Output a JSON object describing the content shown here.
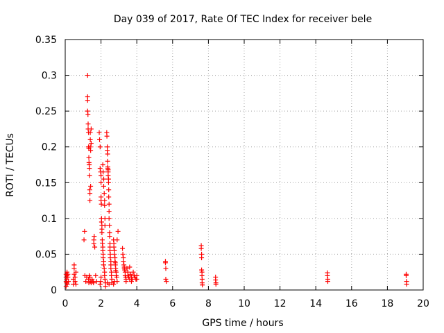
{
  "chart_data": {
    "type": "scatter",
    "title": "Day 039 of 2017, Rate Of TEC Index for receiver bele",
    "xlabel": "GPS time / hours",
    "ylabel": "ROTI / TECUs",
    "xlim": [
      0,
      20
    ],
    "ylim": [
      0,
      0.35
    ],
    "xticks": [
      0,
      2,
      4,
      6,
      8,
      10,
      12,
      14,
      16,
      18,
      20
    ],
    "yticks": [
      0,
      0.05,
      0.1,
      0.15,
      0.2,
      0.25,
      0.3,
      0.35
    ],
    "xtick_labels": [
      "0",
      "2",
      "4",
      "6",
      "8",
      "10",
      "12",
      "14",
      "16",
      "18",
      "20"
    ],
    "ytick_labels": [
      "0",
      "0.05",
      "0.1",
      "0.15",
      "0.2",
      "0.25",
      "0.3",
      "0.35"
    ],
    "grid": true,
    "marker": "+",
    "marker_color": "#ff0000",
    "series": [
      {
        "name": "ROTI",
        "points": [
          [
            0.05,
            0.005
          ],
          [
            0.05,
            0.012
          ],
          [
            0.05,
            0.018
          ],
          [
            0.05,
            0.022
          ],
          [
            0.08,
            0.01
          ],
          [
            0.08,
            0.015
          ],
          [
            0.1,
            0.02
          ],
          [
            0.1,
            0.025
          ],
          [
            0.12,
            0.008
          ],
          [
            0.15,
            0.018
          ],
          [
            0.15,
            0.022
          ],
          [
            0.18,
            0.012
          ],
          [
            0.45,
            0.008
          ],
          [
            0.45,
            0.015
          ],
          [
            0.5,
            0.022
          ],
          [
            0.5,
            0.035
          ],
          [
            0.5,
            0.03
          ],
          [
            0.55,
            0.018
          ],
          [
            0.55,
            0.012
          ],
          [
            0.6,
            0.008
          ],
          [
            0.6,
            0.025
          ],
          [
            1.05,
            0.07
          ],
          [
            1.08,
            0.082
          ],
          [
            1.1,
            0.02
          ],
          [
            1.15,
            0.012
          ],
          [
            1.2,
            0.018
          ],
          [
            1.25,
            0.3
          ],
          [
            1.25,
            0.27
          ],
          [
            1.25,
            0.265
          ],
          [
            1.25,
            0.25
          ],
          [
            1.27,
            0.245
          ],
          [
            1.28,
            0.232
          ],
          [
            1.28,
            0.225
          ],
          [
            1.3,
            0.22
          ],
          [
            1.3,
            0.2
          ],
          [
            1.32,
            0.198
          ],
          [
            1.32,
            0.185
          ],
          [
            1.33,
            0.178
          ],
          [
            1.34,
            0.175
          ],
          [
            1.35,
            0.17
          ],
          [
            1.36,
            0.16
          ],
          [
            1.37,
            0.14
          ],
          [
            1.38,
            0.135
          ],
          [
            1.38,
            0.125
          ],
          [
            1.4,
            0.22
          ],
          [
            1.4,
            0.21
          ],
          [
            1.4,
            0.2
          ],
          [
            1.42,
            0.195
          ],
          [
            1.42,
            0.145
          ],
          [
            1.45,
            0.225
          ],
          [
            1.45,
            0.205
          ],
          [
            1.3,
            0.015
          ],
          [
            1.32,
            0.01
          ],
          [
            1.35,
            0.02
          ],
          [
            1.38,
            0.018
          ],
          [
            1.4,
            0.012
          ],
          [
            1.45,
            0.01
          ],
          [
            1.5,
            0.015
          ],
          [
            1.55,
            0.012
          ],
          [
            1.58,
            0.01
          ],
          [
            1.6,
            0.07
          ],
          [
            1.6,
            0.065
          ],
          [
            1.62,
            0.075
          ],
          [
            1.65,
            0.06
          ],
          [
            1.7,
            0.02
          ],
          [
            1.75,
            0.012
          ],
          [
            1.9,
            0.22
          ],
          [
            1.92,
            0.21
          ],
          [
            1.95,
            0.2
          ],
          [
            1.95,
            0.17
          ],
          [
            1.98,
            0.165
          ],
          [
            2.0,
            0.16
          ],
          [
            2.0,
            0.15
          ],
          [
            2.0,
            0.13
          ],
          [
            2.0,
            0.125
          ],
          [
            2.02,
            0.12
          ],
          [
            2.03,
            0.1
          ],
          [
            2.03,
            0.095
          ],
          [
            2.05,
            0.09
          ],
          [
            2.05,
            0.085
          ],
          [
            2.05,
            0.08
          ],
          [
            2.07,
            0.07
          ],
          [
            2.08,
            0.065
          ],
          [
            2.1,
            0.06
          ],
          [
            2.1,
            0.055
          ],
          [
            2.12,
            0.05
          ],
          [
            2.12,
            0.045
          ],
          [
            2.15,
            0.04
          ],
          [
            2.15,
            0.035
          ],
          [
            2.18,
            0.03
          ],
          [
            2.2,
            0.025
          ],
          [
            2.2,
            0.02
          ],
          [
            2.22,
            0.015
          ],
          [
            2.25,
            0.01
          ],
          [
            2.25,
            0.005
          ],
          [
            1.95,
            0.008
          ],
          [
            1.98,
            0.012
          ],
          [
            2.0,
            0.018
          ],
          [
            2.1,
            0.175
          ],
          [
            2.12,
            0.165
          ],
          [
            2.15,
            0.155
          ],
          [
            2.15,
            0.145
          ],
          [
            2.18,
            0.135
          ],
          [
            2.2,
            0.125
          ],
          [
            2.2,
            0.118
          ],
          [
            2.22,
            0.1
          ],
          [
            2.22,
            0.09
          ],
          [
            2.32,
            0.22
          ],
          [
            2.33,
            0.215
          ],
          [
            2.35,
            0.2
          ],
          [
            2.35,
            0.195
          ],
          [
            2.37,
            0.19
          ],
          [
            2.37,
            0.18
          ],
          [
            2.38,
            0.172
          ],
          [
            2.38,
            0.17
          ],
          [
            2.4,
            0.168
          ],
          [
            2.4,
            0.165
          ],
          [
            2.4,
            0.16
          ],
          [
            2.42,
            0.155
          ],
          [
            2.42,
            0.15
          ],
          [
            2.43,
            0.14
          ],
          [
            2.43,
            0.13
          ],
          [
            2.45,
            0.12
          ],
          [
            2.45,
            0.11
          ],
          [
            2.45,
            0.1
          ],
          [
            2.47,
            0.09
          ],
          [
            2.48,
            0.08
          ],
          [
            2.48,
            0.075
          ],
          [
            2.5,
            0.065
          ],
          [
            2.5,
            0.06
          ],
          [
            2.5,
            0.055
          ],
          [
            2.52,
            0.05
          ],
          [
            2.52,
            0.045
          ],
          [
            2.55,
            0.04
          ],
          [
            2.55,
            0.035
          ],
          [
            2.55,
            0.03
          ],
          [
            2.58,
            0.025
          ],
          [
            2.58,
            0.02
          ],
          [
            2.6,
            0.015
          ],
          [
            2.6,
            0.01
          ],
          [
            2.35,
            0.01
          ],
          [
            2.45,
            0.008
          ],
          [
            2.7,
            0.07
          ],
          [
            2.72,
            0.065
          ],
          [
            2.72,
            0.06
          ],
          [
            2.75,
            0.055
          ],
          [
            2.75,
            0.05
          ],
          [
            2.78,
            0.045
          ],
          [
            2.78,
            0.04
          ],
          [
            2.8,
            0.038
          ],
          [
            2.8,
            0.035
          ],
          [
            2.82,
            0.03
          ],
          [
            2.82,
            0.027
          ],
          [
            2.85,
            0.025
          ],
          [
            2.85,
            0.02
          ],
          [
            2.88,
            0.018
          ],
          [
            2.9,
            0.012
          ],
          [
            2.9,
            0.07
          ],
          [
            2.95,
            0.082
          ],
          [
            2.7,
            0.008
          ],
          [
            2.75,
            0.012
          ],
          [
            3.2,
            0.058
          ],
          [
            3.22,
            0.05
          ],
          [
            3.25,
            0.045
          ],
          [
            3.25,
            0.04
          ],
          [
            3.28,
            0.035
          ],
          [
            3.3,
            0.032
          ],
          [
            3.3,
            0.03
          ],
          [
            3.32,
            0.028
          ],
          [
            3.35,
            0.025
          ],
          [
            3.35,
            0.02
          ],
          [
            3.38,
            0.018
          ],
          [
            3.4,
            0.015
          ],
          [
            3.4,
            0.012
          ],
          [
            3.45,
            0.03
          ],
          [
            3.5,
            0.025
          ],
          [
            3.5,
            0.02
          ],
          [
            3.55,
            0.018
          ],
          [
            3.6,
            0.015
          ],
          [
            3.65,
            0.022
          ],
          [
            3.7,
            0.018
          ],
          [
            3.75,
            0.015
          ],
          [
            3.8,
            0.025
          ],
          [
            3.85,
            0.02
          ],
          [
            3.9,
            0.018
          ],
          [
            3.95,
            0.015
          ],
          [
            4.0,
            0.02
          ],
          [
            4.0,
            0.015
          ],
          [
            3.6,
            0.032
          ],
          [
            3.7,
            0.012
          ],
          [
            5.6,
            0.04
          ],
          [
            5.6,
            0.038
          ],
          [
            5.62,
            0.03
          ],
          [
            5.62,
            0.015
          ],
          [
            5.65,
            0.012
          ],
          [
            7.6,
            0.062
          ],
          [
            7.6,
            0.058
          ],
          [
            7.62,
            0.05
          ],
          [
            7.62,
            0.045
          ],
          [
            7.62,
            0.028
          ],
          [
            7.64,
            0.025
          ],
          [
            7.64,
            0.02
          ],
          [
            7.65,
            0.015
          ],
          [
            7.65,
            0.01
          ],
          [
            7.66,
            0.007
          ],
          [
            8.4,
            0.018
          ],
          [
            8.4,
            0.014
          ],
          [
            8.42,
            0.01
          ],
          [
            8.42,
            0.008
          ],
          [
            14.65,
            0.024
          ],
          [
            14.65,
            0.02
          ],
          [
            14.67,
            0.015
          ],
          [
            14.67,
            0.012
          ],
          [
            19.05,
            0.022
          ],
          [
            19.05,
            0.02
          ],
          [
            19.07,
            0.012
          ],
          [
            19.07,
            0.008
          ]
        ]
      }
    ]
  }
}
